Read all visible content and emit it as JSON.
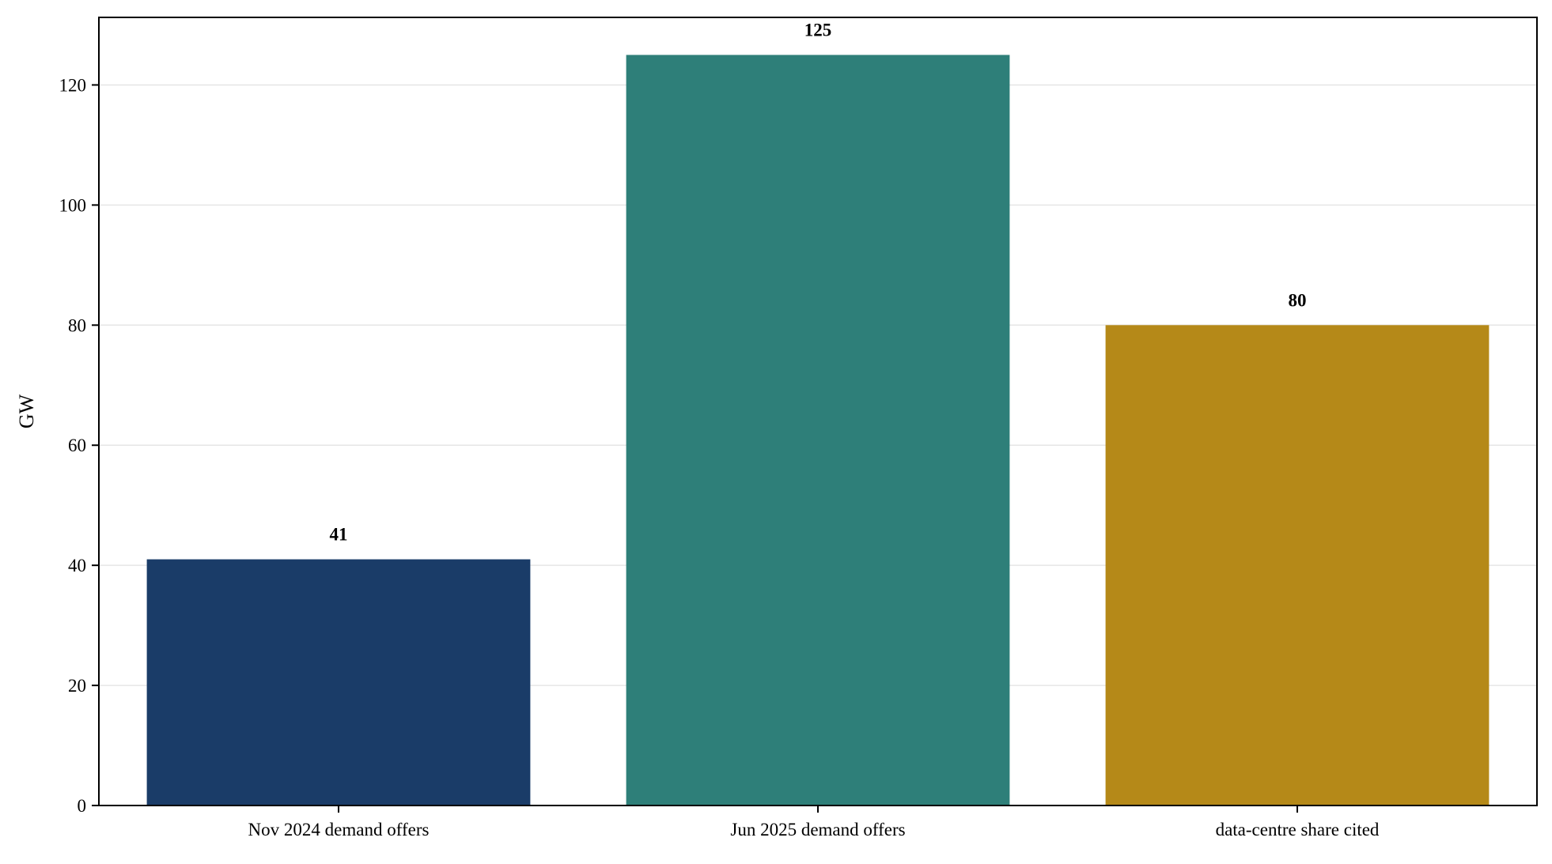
{
  "chart_data": {
    "type": "bar",
    "title": "",
    "xlabel": "",
    "ylabel": "GW",
    "categories": [
      "Nov 2024 demand offers",
      "Jun 2025 demand offers",
      "data-centre share cited"
    ],
    "values": [
      41,
      125,
      80
    ],
    "value_labels": [
      "41",
      "125",
      "80"
    ],
    "bar_colors": [
      "#1a3c68",
      "#2e7f79",
      "#b58918"
    ],
    "ylim": [
      0,
      131.25
    ],
    "yticks": [
      0,
      20,
      40,
      60,
      80,
      100,
      120
    ],
    "grid": true,
    "grid_axis": "y",
    "legend": "none"
  }
}
